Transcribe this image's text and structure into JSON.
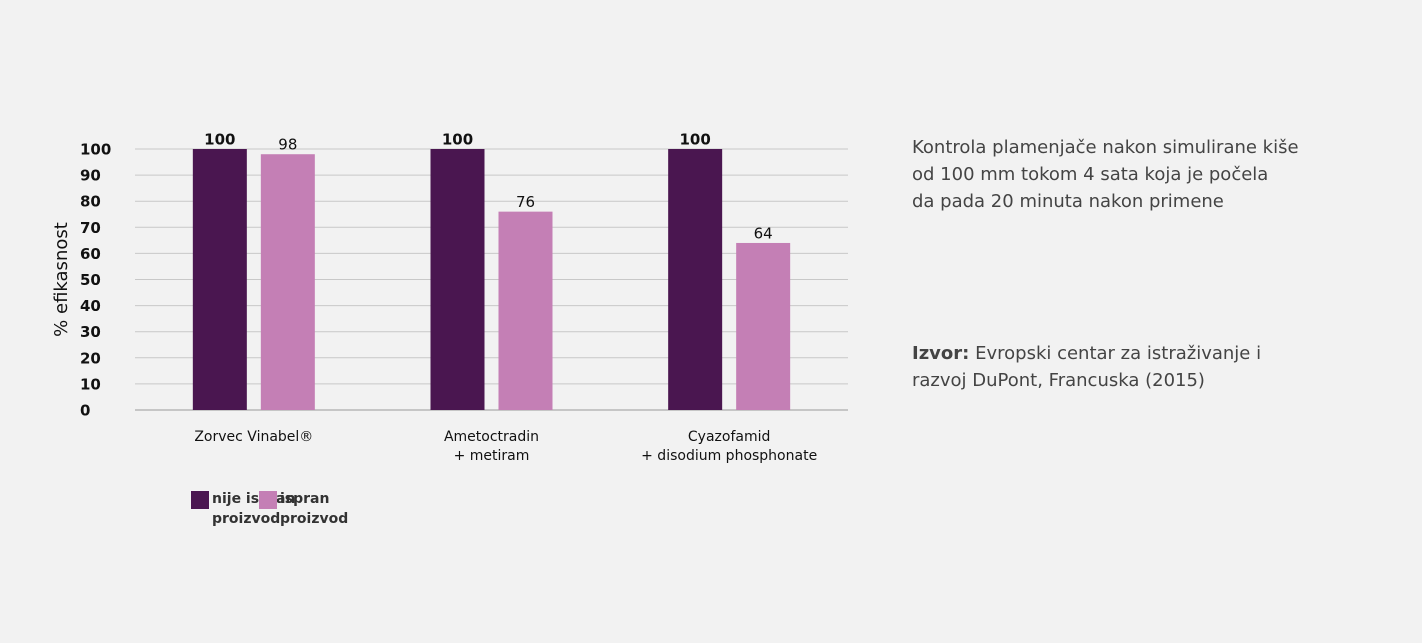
{
  "chart_data": {
    "type": "bar",
    "categories": [
      "Zorvec Vinabel®",
      "Ametoctradin\n+ metiram",
      "Cyazofamid\n+ disodium phosphonate"
    ],
    "series": [
      {
        "name": "nije ispran\nproizvod",
        "color": "#4a1650",
        "values": [
          100,
          100,
          100
        ]
      },
      {
        "name": "ispran\nproizvod",
        "color": "#c47fb5",
        "values": [
          98,
          76,
          64
        ]
      }
    ],
    "ylabel": "% efikasnost",
    "ylim": [
      0,
      100
    ],
    "yticks": [
      0,
      10,
      20,
      30,
      40,
      50,
      60,
      70,
      80,
      90,
      100
    ],
    "grid": true
  },
  "description": "Kontrola plamenjače nakon simulirane kiše\nod 100 mm tokom 4 sata koja je počela\nda pada 20 minuta nakon primene",
  "source": {
    "label": "Izvor:",
    "text": "Evropski centar za istraživanje i\nrazvoj DuPont, Francuska (2015)"
  }
}
